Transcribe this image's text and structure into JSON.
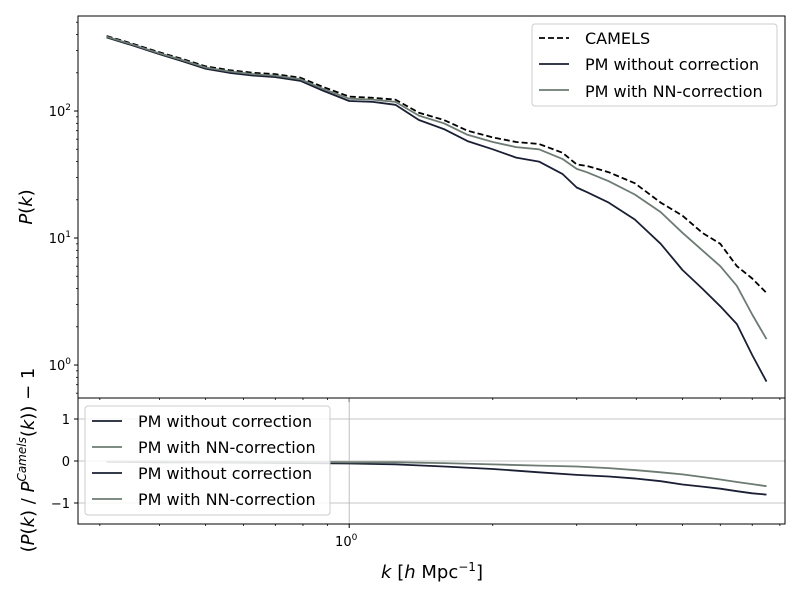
{
  "chart_data": [
    {
      "type": "line",
      "panel": "top",
      "xscale": "log",
      "yscale": "log",
      "xlim": [
        0.27,
        8.2
      ],
      "ylim": [
        0.55,
        560
      ],
      "yticks": [
        {
          "value": 1,
          "base": "10",
          "exp": "0"
        },
        {
          "value": 10,
          "base": "10",
          "exp": "1"
        },
        {
          "value": 100,
          "base": "10",
          "exp": "2"
        }
      ],
      "ylabel": {
        "main": "P",
        "paren_open": "(",
        "var": "k",
        "paren_close": ")"
      },
      "legend": {
        "placement": "top-right",
        "entries": [
          "CAMELS",
          "PM without correction",
          "PM with NN-correction"
        ]
      },
      "grid": false,
      "series": [
        {
          "name": "CAMELS",
          "color": "#000000",
          "dash": "dashed",
          "x": [
            0.31,
            0.35,
            0.4,
            0.45,
            0.5,
            0.56,
            0.63,
            0.7,
            0.79,
            0.88,
            1.0,
            1.12,
            1.25,
            1.4,
            1.58,
            1.77,
            2.0,
            2.24,
            2.5,
            2.8,
            3.0,
            3.15,
            3.5,
            3.97,
            4.5,
            5.0,
            5.5,
            6.0,
            6.5,
            7.0,
            7.5
          ],
          "y": [
            390,
            340,
            290,
            255,
            225,
            210,
            200,
            195,
            183,
            155,
            130,
            127,
            123,
            97,
            85,
            70,
            62,
            57,
            55,
            47,
            38,
            37,
            33,
            27,
            19,
            15,
            11,
            9,
            6,
            4.8,
            3.7
          ]
        },
        {
          "name": "PM without correction",
          "color": "#1a1f33",
          "dash": "solid",
          "x": [
            0.31,
            0.35,
            0.4,
            0.45,
            0.5,
            0.56,
            0.63,
            0.7,
            0.79,
            0.88,
            1.0,
            1.12,
            1.25,
            1.4,
            1.58,
            1.77,
            2.0,
            2.24,
            2.5,
            2.8,
            3.0,
            3.15,
            3.5,
            3.97,
            4.5,
            5.0,
            5.5,
            6.0,
            6.5,
            7.0,
            7.5
          ],
          "y": [
            380,
            330,
            280,
            245,
            215,
            200,
            190,
            185,
            173,
            145,
            120,
            118,
            112,
            85,
            72,
            58,
            50,
            43,
            40,
            32,
            25,
            23,
            19,
            14,
            9,
            5.6,
            4.0,
            2.9,
            2.1,
            1.2,
            0.74
          ]
        },
        {
          "name": "PM with NN-correction",
          "color": "#6d7b73",
          "dash": "solid",
          "x": [
            0.31,
            0.35,
            0.4,
            0.45,
            0.5,
            0.56,
            0.63,
            0.7,
            0.79,
            0.88,
            1.0,
            1.12,
            1.25,
            1.4,
            1.58,
            1.77,
            2.0,
            2.24,
            2.5,
            2.8,
            3.0,
            3.15,
            3.5,
            3.97,
            4.5,
            5.0,
            5.5,
            6.0,
            6.5,
            7.0,
            7.5
          ],
          "y": [
            385,
            335,
            285,
            250,
            220,
            205,
            195,
            190,
            178,
            150,
            125,
            123,
            118,
            92,
            80,
            65,
            57,
            52,
            50,
            42,
            35,
            33,
            28,
            22,
            16,
            11,
            8,
            6,
            4.2,
            2.5,
            1.6
          ]
        }
      ]
    },
    {
      "type": "line",
      "panel": "bottom",
      "xscale": "log",
      "yscale": "linear",
      "xlim": [
        0.27,
        8.2
      ],
      "ylim": [
        -1.5,
        1.5
      ],
      "xticks": [
        {
          "value": 1,
          "base": "10",
          "exp": "0"
        }
      ],
      "yticks": [
        {
          "value": 1,
          "label": "1"
        },
        {
          "value": 0,
          "label": "0"
        },
        {
          "value": -1,
          "label": "−1"
        }
      ],
      "xlabel": {
        "var": "k",
        "open": "[",
        "h": "h",
        "unit": "Mpc",
        "exp": "−1",
        "close": "]"
      },
      "ylabel": {
        "paren_open": "(",
        "pk": "P",
        "k_open": "(",
        "k": "k",
        "k_close": ")",
        "slash": "/",
        "p2": "P",
        "sup": "Camels",
        "k2_open": "(",
        "k2": "k",
        "k2_close": "))",
        "minus_one": "− 1"
      },
      "legend": {
        "placement": "top-left",
        "entries": [
          "PM without correction",
          "PM with NN-correction",
          "PM without correction",
          "PM with NN-correction"
        ]
      },
      "grid": true,
      "series": [
        {
          "name": "PM without correction",
          "color": "#1a1f33",
          "dash": "solid",
          "x": [
            0.31,
            0.4,
            0.5,
            0.63,
            0.79,
            1.0,
            1.25,
            1.58,
            2.0,
            2.5,
            3.0,
            3.5,
            4.0,
            4.5,
            5.0,
            5.5,
            6.0,
            6.5,
            7.0,
            7.5
          ],
          "y": [
            -0.02,
            -0.03,
            -0.03,
            -0.04,
            -0.05,
            -0.06,
            -0.08,
            -0.13,
            -0.19,
            -0.27,
            -0.33,
            -0.37,
            -0.42,
            -0.48,
            -0.56,
            -0.61,
            -0.66,
            -0.72,
            -0.77,
            -0.8
          ]
        },
        {
          "name": "PM with NN-correction",
          "color": "#6d7b73",
          "dash": "solid",
          "x": [
            0.31,
            0.4,
            0.5,
            0.63,
            0.79,
            1.0,
            1.25,
            1.58,
            2.0,
            2.5,
            3.0,
            3.5,
            4.0,
            4.5,
            5.0,
            5.5,
            6.0,
            6.5,
            7.0,
            7.5
          ],
          "y": [
            -0.01,
            -0.01,
            -0.02,
            -0.02,
            -0.02,
            -0.03,
            -0.03,
            -0.05,
            -0.08,
            -0.11,
            -0.13,
            -0.17,
            -0.22,
            -0.27,
            -0.32,
            -0.38,
            -0.44,
            -0.5,
            -0.55,
            -0.6
          ]
        }
      ]
    }
  ]
}
